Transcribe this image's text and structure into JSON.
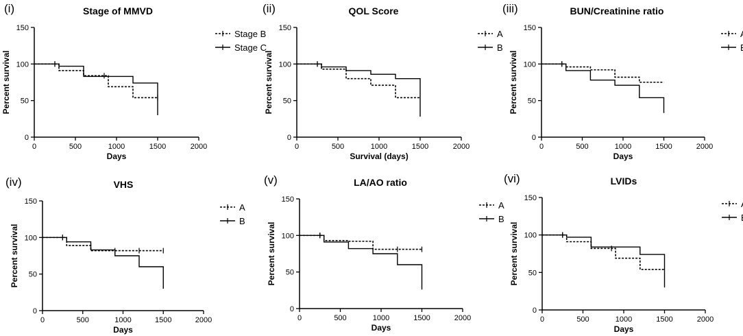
{
  "chart_data": [
    {
      "type": "line",
      "panel_label": "(i)",
      "title": "Stage of MMVD",
      "xlabel": "Days",
      "ylabel": "Percent survival",
      "xlim": [
        0,
        2000
      ],
      "ylim": [
        0,
        150
      ],
      "xticks": [
        0,
        500,
        1000,
        1500,
        2000
      ],
      "yticks": [
        0,
        50,
        100,
        150
      ],
      "grid": false,
      "legend_position": "top-right",
      "series": [
        {
          "name": "Stage B",
          "style": "dotted",
          "steps": [
            [
              0,
              100
            ],
            [
              300,
              91
            ],
            [
              600,
              84
            ],
            [
              900,
              69
            ],
            [
              1200,
              54
            ],
            [
              1500,
              54
            ]
          ],
          "censor_x": [
            250,
            850,
            1500
          ]
        },
        {
          "name": "Stage C",
          "style": "solid",
          "steps": [
            [
              0,
              100
            ],
            [
              300,
              97
            ],
            [
              600,
              83
            ],
            [
              900,
              83
            ],
            [
              1200,
              74
            ],
            [
              1500,
              30
            ]
          ],
          "censor_x": [
            250
          ]
        }
      ]
    },
    {
      "type": "line",
      "panel_label": "(ii)",
      "title": "QOL Score",
      "xlabel": "Survival (days)",
      "ylabel": "Percent survival",
      "xlim": [
        0,
        2000
      ],
      "ylim": [
        0,
        150
      ],
      "xticks": [
        0,
        500,
        1000,
        1500,
        2000
      ],
      "yticks": [
        0,
        50,
        100,
        150
      ],
      "grid": false,
      "legend_position": "top-right",
      "series": [
        {
          "name": "A",
          "style": "dotted",
          "steps": [
            [
              0,
              100
            ],
            [
              300,
              93
            ],
            [
              600,
              80
            ],
            [
              900,
              71
            ],
            [
              1200,
              54
            ],
            [
              1500,
              54
            ]
          ],
          "censor_x": [
            250
          ]
        },
        {
          "name": "B",
          "style": "solid",
          "steps": [
            [
              0,
              100
            ],
            [
              300,
              96
            ],
            [
              600,
              91
            ],
            [
              900,
              86
            ],
            [
              1200,
              80
            ],
            [
              1500,
              28
            ]
          ],
          "censor_x": [
            250
          ]
        }
      ]
    },
    {
      "type": "line",
      "panel_label": "(iii)",
      "title": "BUN/Creatinine ratio",
      "xlabel": "Days",
      "ylabel": "Percent survival",
      "xlim": [
        0,
        2000
      ],
      "ylim": [
        0,
        150
      ],
      "xticks": [
        0,
        500,
        1000,
        1500,
        2000
      ],
      "yticks": [
        0,
        50,
        100,
        150
      ],
      "grid": false,
      "legend_position": "top-right",
      "series": [
        {
          "name": "A",
          "style": "dotted",
          "steps": [
            [
              0,
              100
            ],
            [
              300,
              96
            ],
            [
              600,
              92
            ],
            [
              900,
              82
            ],
            [
              1200,
              75
            ],
            [
              1500,
              75
            ]
          ],
          "censor_x": [
            250
          ]
        },
        {
          "name": "B",
          "style": "solid",
          "steps": [
            [
              0,
              100
            ],
            [
              300,
              91
            ],
            [
              600,
              78
            ],
            [
              900,
              71
            ],
            [
              1200,
              54
            ],
            [
              1500,
              33
            ]
          ],
          "censor_x": [
            250
          ]
        }
      ]
    },
    {
      "type": "line",
      "panel_label": "(iv)",
      "title": "VHS",
      "xlabel": "Days",
      "ylabel": "Percent survival",
      "xlim": [
        0,
        2000
      ],
      "ylim": [
        0,
        150
      ],
      "xticks": [
        0,
        500,
        1000,
        1500,
        2000
      ],
      "yticks": [
        0,
        50,
        100,
        150
      ],
      "grid": false,
      "legend_position": "top-right",
      "series": [
        {
          "name": "A",
          "style": "dotted",
          "steps": [
            [
              0,
              100
            ],
            [
              300,
              89
            ],
            [
              600,
              82
            ],
            [
              900,
              82
            ],
            [
              1200,
              82
            ],
            [
              1500,
              82
            ]
          ],
          "censor_x": [
            250,
            900,
            1200,
            1500
          ]
        },
        {
          "name": "B",
          "style": "solid",
          "steps": [
            [
              0,
              100
            ],
            [
              300,
              94
            ],
            [
              600,
              83
            ],
            [
              900,
              75
            ],
            [
              1200,
              60
            ],
            [
              1500,
              30
            ]
          ],
          "censor_x": [
            250
          ]
        }
      ]
    },
    {
      "type": "line",
      "panel_label": "(v)",
      "title": "LA/AO ratio",
      "xlabel": "Days",
      "ylabel": "Percent survival",
      "xlim": [
        0,
        2000
      ],
      "ylim": [
        0,
        150
      ],
      "xticks": [
        0,
        500,
        1000,
        1500,
        2000
      ],
      "yticks": [
        0,
        50,
        100,
        150
      ],
      "grid": false,
      "legend_position": "top-right",
      "series": [
        {
          "name": "A",
          "style": "dotted",
          "steps": [
            [
              0,
              100
            ],
            [
              300,
              93
            ],
            [
              600,
              92
            ],
            [
              900,
              81
            ],
            [
              1200,
              81
            ],
            [
              1500,
              81
            ]
          ],
          "censor_x": [
            250,
            1200,
            1500
          ]
        },
        {
          "name": "B",
          "style": "solid",
          "steps": [
            [
              0,
              100
            ],
            [
              300,
              91
            ],
            [
              600,
              82
            ],
            [
              900,
              75
            ],
            [
              1200,
              60
            ],
            [
              1500,
              26
            ]
          ],
          "censor_x": [
            250
          ]
        }
      ]
    },
    {
      "type": "line",
      "panel_label": "(vi)",
      "title": "LVIDs",
      "xlabel": "Days",
      "ylabel": "Percent survival",
      "xlim": [
        0,
        2000
      ],
      "ylim": [
        0,
        150
      ],
      "xticks": [
        0,
        500,
        1000,
        1500,
        2000
      ],
      "yticks": [
        0,
        50,
        100,
        150
      ],
      "grid": false,
      "legend_position": "top-right",
      "series": [
        {
          "name": "A",
          "style": "dotted",
          "steps": [
            [
              0,
              100
            ],
            [
              300,
              91
            ],
            [
              600,
              82
            ],
            [
              900,
              69
            ],
            [
              1200,
              54
            ],
            [
              1500,
              54
            ]
          ],
          "censor_x": [
            250,
            850
          ]
        },
        {
          "name": "B",
          "style": "solid",
          "steps": [
            [
              0,
              100
            ],
            [
              300,
              97
            ],
            [
              600,
              84
            ],
            [
              900,
              84
            ],
            [
              1200,
              74
            ],
            [
              1500,
              30
            ]
          ],
          "censor_x": [
            250
          ]
        }
      ]
    }
  ]
}
